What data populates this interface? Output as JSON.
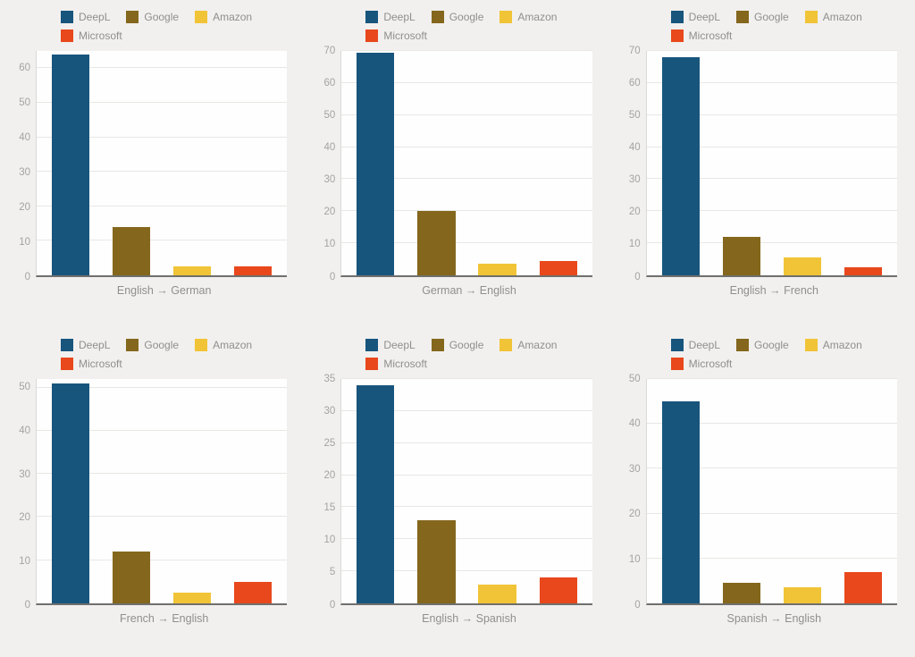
{
  "page": {
    "background": "#f1f0ee"
  },
  "legend": {
    "position": "top-left",
    "items": [
      {
        "label": "DeepL",
        "color": "#17557d"
      },
      {
        "label": "Google",
        "color": "#84671d"
      },
      {
        "label": "Amazon",
        "color": "#f1c437"
      },
      {
        "label": "Microsoft",
        "color": "#e8481c"
      }
    ]
  },
  "chart_data": [
    {
      "type": "bar",
      "title": "English → German",
      "categories": [
        "DeepL",
        "Google",
        "Amazon",
        "Microsoft"
      ],
      "values": [
        64,
        14,
        2.5,
        2.5
      ],
      "xlabel": "English → German",
      "ylabel": "",
      "ylim": [
        0,
        65
      ],
      "yticks": [
        0,
        10,
        20,
        30,
        40,
        50,
        60
      ],
      "grid": true
    },
    {
      "type": "bar",
      "title": "German → English",
      "categories": [
        "DeepL",
        "Google",
        "Amazon",
        "Microsoft"
      ],
      "values": [
        69.5,
        20,
        3.5,
        4.5
      ],
      "xlabel": "German → English",
      "ylabel": "",
      "ylim": [
        0,
        70
      ],
      "yticks": [
        0,
        10,
        20,
        30,
        40,
        50,
        60,
        70
      ],
      "grid": true
    },
    {
      "type": "bar",
      "title": "English → French",
      "categories": [
        "DeepL",
        "Google",
        "Amazon",
        "Microsoft"
      ],
      "values": [
        68,
        12,
        5.5,
        2.5
      ],
      "xlabel": "English → French",
      "ylabel": "",
      "ylim": [
        0,
        70
      ],
      "yticks": [
        0,
        10,
        20,
        30,
        40,
        50,
        60,
        70
      ],
      "grid": true
    },
    {
      "type": "bar",
      "title": "French → English",
      "categories": [
        "DeepL",
        "Google",
        "Amazon",
        "Microsoft"
      ],
      "values": [
        51,
        12,
        2.5,
        5
      ],
      "xlabel": "French → English",
      "ylabel": "",
      "ylim": [
        0,
        52
      ],
      "yticks": [
        0,
        10,
        20,
        30,
        40,
        50
      ],
      "grid": true
    },
    {
      "type": "bar",
      "title": "English → Spanish",
      "categories": [
        "DeepL",
        "Google",
        "Amazon",
        "Microsoft"
      ],
      "values": [
        34,
        13,
        3,
        4
      ],
      "xlabel": "English → Spanish",
      "ylabel": "",
      "ylim": [
        0,
        35
      ],
      "yticks": [
        0,
        5,
        10,
        15,
        20,
        25,
        30,
        35
      ],
      "grid": true
    },
    {
      "type": "bar",
      "title": "Spanish → English",
      "categories": [
        "DeepL",
        "Google",
        "Amazon",
        "Microsoft"
      ],
      "values": [
        45,
        4.5,
        3.5,
        7
      ],
      "xlabel": "Spanish → English",
      "ylabel": "",
      "ylim": [
        0,
        50
      ],
      "yticks": [
        0,
        10,
        20,
        30,
        40,
        50
      ],
      "grid": true
    }
  ]
}
